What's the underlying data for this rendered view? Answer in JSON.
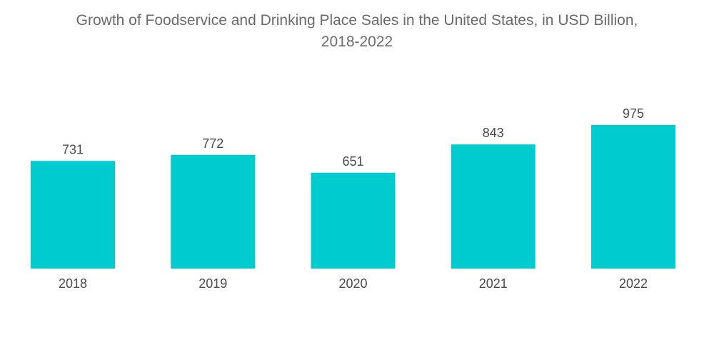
{
  "chart_data": {
    "type": "bar",
    "title": "Growth of Foodservice and Drinking Place Sales in the United States, in USD Billion, 2018-2022",
    "title_lines": [
      "Growth of Foodservice and Drinking Place Sales in the United States, in USD Billion,",
      "2018-2022"
    ],
    "categories": [
      "2018",
      "2019",
      "2020",
      "2021",
      "2022"
    ],
    "values": [
      731,
      772,
      651,
      843,
      975
    ],
    "xlabel": "",
    "ylabel": "",
    "ylim": [
      0,
      975
    ],
    "grid": false,
    "legend": "none",
    "bar_color": "#00CCCF",
    "data_labels": true
  }
}
